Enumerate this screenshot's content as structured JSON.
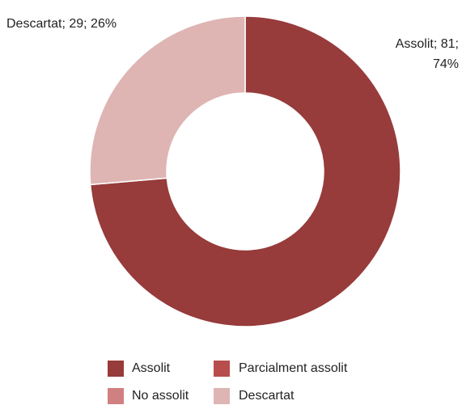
{
  "chart_data": {
    "type": "donut",
    "categories": [
      "Assolit",
      "Parcialment assolit",
      "No assolit",
      "Descartat"
    ],
    "values": [
      81,
      0,
      0,
      29
    ],
    "value_labels": [
      "Assolit; 81; 74%",
      null,
      null,
      "Descartat; 29; 26%"
    ],
    "colors": [
      "#973b3b",
      "#b84d4d",
      "#d08080",
      "#deb5b3"
    ],
    "legend": "bottom"
  }
}
